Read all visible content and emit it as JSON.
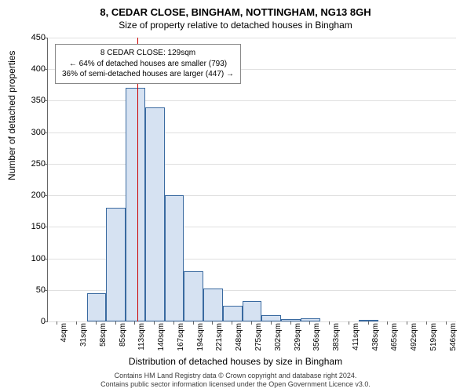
{
  "title_main": "8, CEDAR CLOSE, BINGHAM, NOTTINGHAM, NG13 8GH",
  "title_sub": "Size of property relative to detached houses in Bingham",
  "ylabel": "Number of detached properties",
  "xlabel": "Distribution of detached houses by size in Bingham",
  "footer_line1": "Contains HM Land Registry data © Crown copyright and database right 2024.",
  "footer_line2": "Contains public sector information licensed under the Open Government Licence v3.0.",
  "chart": {
    "type": "histogram",
    "ylim": [
      0,
      450
    ],
    "ytick_step": 50,
    "yticks": [
      0,
      50,
      100,
      150,
      200,
      250,
      300,
      350,
      400,
      450
    ],
    "xticks": [
      "4sqm",
      "31sqm",
      "58sqm",
      "85sqm",
      "113sqm",
      "140sqm",
      "167sqm",
      "194sqm",
      "221sqm",
      "248sqm",
      "275sqm",
      "302sqm",
      "329sqm",
      "356sqm",
      "383sqm",
      "411sqm",
      "438sqm",
      "465sqm",
      "492sqm",
      "519sqm",
      "546sqm"
    ],
    "bar_fill": "#d6e2f2",
    "bar_stroke": "#3a6aa0",
    "grid_color": "#e0e0e0",
    "axis_color": "#666666",
    "background_color": "#ffffff",
    "values": [
      0,
      0,
      45,
      180,
      370,
      340,
      200,
      80,
      52,
      25,
      32,
      10,
      4,
      5,
      0,
      0,
      3,
      0,
      0,
      0,
      0
    ],
    "marker_line": {
      "value_sqm": 129,
      "color": "#cc0000",
      "width": 1
    }
  },
  "annotation": {
    "line1": "8 CEDAR CLOSE: 129sqm",
    "line2": "← 64% of detached houses are smaller (793)",
    "line3": "36% of semi-detached houses are larger (447) →"
  }
}
